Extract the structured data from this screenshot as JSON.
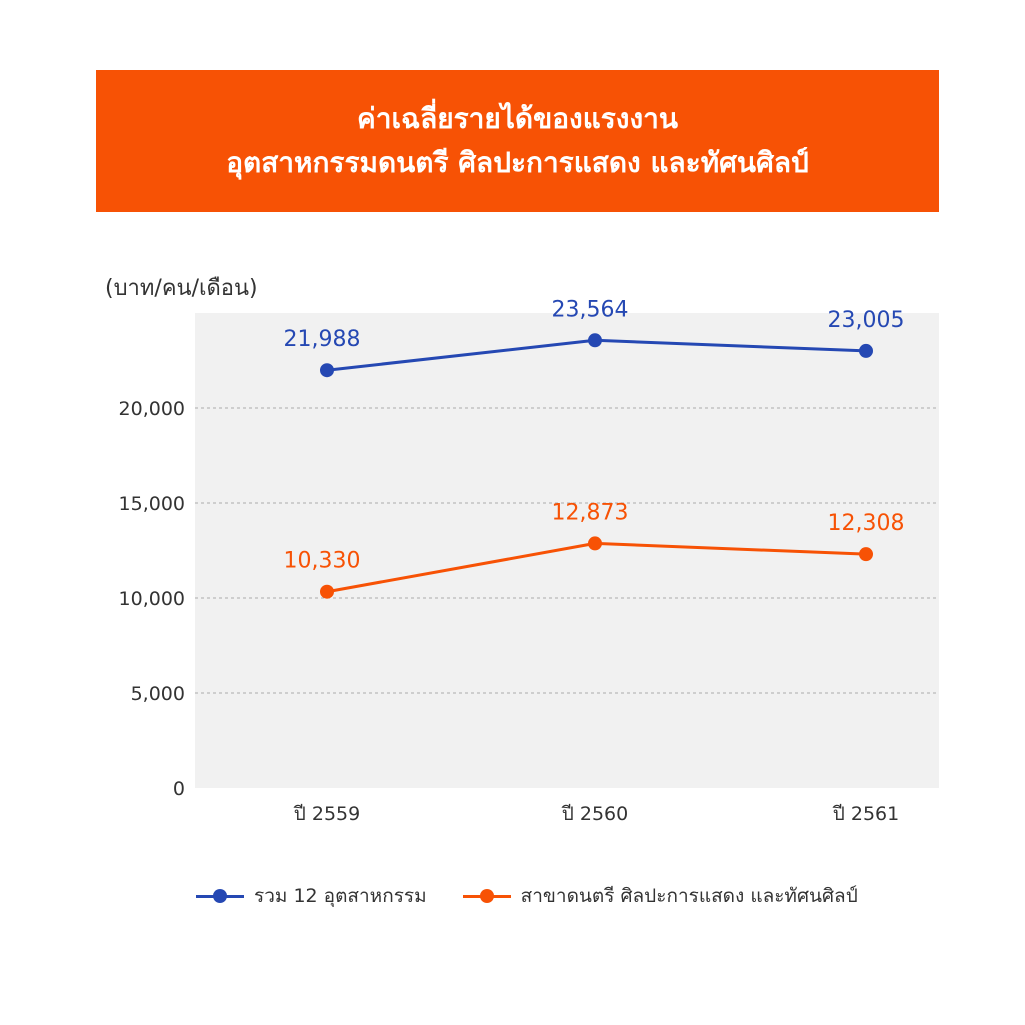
{
  "title": {
    "line1": "ค่าเฉลี่ยรายได้ของแรงงาน",
    "line2": "อุตสาหกรรมดนตรี ศิลปะการแสดง และทัศนศิลป์"
  },
  "colors": {
    "banner": "#f75205",
    "blue": "#2548b3",
    "orange": "#f75205",
    "plot_bg": "#f1f1f1",
    "axis_text": "#333333"
  },
  "chart_data": {
    "type": "line",
    "ylabel": "(บาท/คน/เดือน)",
    "xlabel": "",
    "categories": [
      "ปี 2559",
      "ปี 2560",
      "ปี 2561"
    ],
    "ylim": [
      0,
      25000
    ],
    "yticks": [
      0,
      5000,
      10000,
      15000,
      20000
    ],
    "ytick_labels": [
      "0",
      "5,000",
      "10,000",
      "15,000",
      "20,000"
    ],
    "grid": true,
    "legend_position": "bottom",
    "series": [
      {
        "name": "รวม 12 อุตสาหกรรม",
        "values": [
          21988,
          23564,
          23005
        ],
        "labels": [
          "21,988",
          "23,564",
          "23,005"
        ],
        "color": "#2548b3"
      },
      {
        "name": "สาขาดนตรี ศิลปะการแสดง และทัศนศิลป์",
        "values": [
          10330,
          12873,
          12308
        ],
        "labels": [
          "10,330",
          "12,873",
          "12,308"
        ],
        "color": "#f75205"
      }
    ]
  }
}
